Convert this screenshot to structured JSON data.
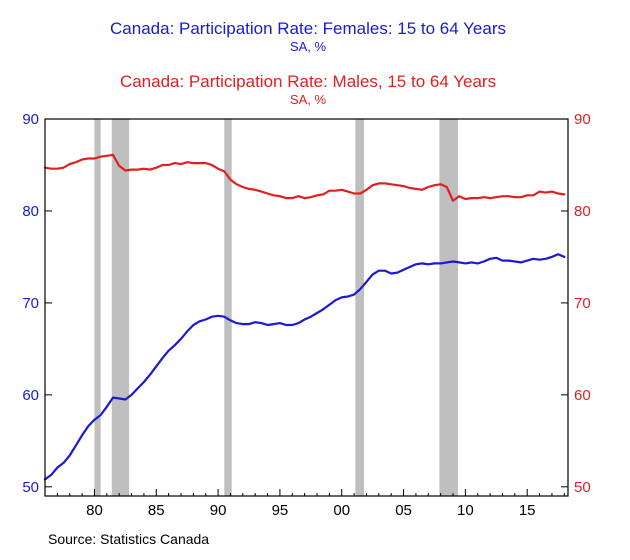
{
  "chart_data": {
    "type": "line",
    "titles": [
      {
        "title": "Canada: Participation Rate: Females: 15 to 64 Years",
        "subtitle": "SA, %",
        "color": "#1a1ad2"
      },
      {
        "title": "Canada: Participation Rate: Males, 15 to 64 Years",
        "subtitle": "SA, %",
        "color": "#e02020"
      }
    ],
    "x_ticks": [
      "80",
      "85",
      "90",
      "95",
      "00",
      "05",
      "10",
      "15"
    ],
    "x_tick_years": [
      1980,
      1985,
      1990,
      1995,
      2000,
      2005,
      2010,
      2015
    ],
    "xlim": [
      1976.0,
      2018.3
    ],
    "left_axis": {
      "ticks": [
        50,
        60,
        70,
        80,
        90
      ],
      "ylim": [
        49,
        90
      ],
      "color": "#1a1ad2"
    },
    "right_axis": {
      "ticks": [
        50,
        60,
        70,
        80,
        90
      ],
      "ylim": [
        49,
        90
      ],
      "color": "#e02020"
    },
    "recession_bands": [
      [
        1980.0,
        1980.5
      ],
      [
        1981.4,
        1982.8
      ],
      [
        1990.5,
        1991.1
      ],
      [
        2001.1,
        2001.8
      ],
      [
        2007.9,
        2009.4
      ]
    ],
    "band_color": "#bfbfbf",
    "grid": false,
    "series": [
      {
        "color": "#1a1ad2",
        "axis": "left",
        "x": [
          1976.0,
          1976.5,
          1977.0,
          1977.5,
          1978.0,
          1978.5,
          1979.0,
          1979.5,
          1980.0,
          1980.5,
          1981.0,
          1981.5,
          1982.0,
          1982.5,
          1983.0,
          1983.5,
          1984.0,
          1984.5,
          1985.0,
          1985.5,
          1986.0,
          1986.5,
          1987.0,
          1987.5,
          1988.0,
          1988.5,
          1989.0,
          1989.5,
          1990.0,
          1990.5,
          1991.0,
          1991.5,
          1992.0,
          1992.5,
          1993.0,
          1993.5,
          1994.0,
          1994.5,
          1995.0,
          1995.5,
          1996.0,
          1996.5,
          1997.0,
          1997.5,
          1998.0,
          1998.5,
          1999.0,
          1999.5,
          2000.0,
          2000.5,
          2001.0,
          2001.5,
          2002.0,
          2002.5,
          2003.0,
          2003.5,
          2004.0,
          2004.5,
          2005.0,
          2005.5,
          2006.0,
          2006.5,
          2007.0,
          2007.5,
          2008.0,
          2008.5,
          2009.0,
          2009.5,
          2010.0,
          2010.5,
          2011.0,
          2011.5,
          2012.0,
          2012.5,
          2013.0,
          2013.5,
          2014.0,
          2014.5,
          2015.0,
          2015.5,
          2016.0,
          2016.5,
          2017.0,
          2017.5,
          2018.0
        ],
        "values": [
          50.8,
          51.3,
          52.1,
          52.6,
          53.4,
          54.5,
          55.6,
          56.6,
          57.3,
          57.8,
          58.7,
          59.7,
          59.6,
          59.5,
          60.0,
          60.7,
          61.4,
          62.2,
          63.1,
          64.0,
          64.8,
          65.4,
          66.1,
          66.9,
          67.6,
          68.0,
          68.2,
          68.5,
          68.6,
          68.5,
          68.1,
          67.8,
          67.7,
          67.7,
          67.9,
          67.8,
          67.6,
          67.7,
          67.8,
          67.6,
          67.6,
          67.8,
          68.2,
          68.5,
          68.9,
          69.3,
          69.8,
          70.3,
          70.6,
          70.7,
          70.9,
          71.5,
          72.3,
          73.1,
          73.5,
          73.5,
          73.2,
          73.3,
          73.6,
          73.9,
          74.2,
          74.3,
          74.2,
          74.3,
          74.3,
          74.4,
          74.5,
          74.4,
          74.3,
          74.4,
          74.3,
          74.5,
          74.8,
          74.9,
          74.6,
          74.6,
          74.5,
          74.4,
          74.6,
          74.8,
          74.7,
          74.8,
          75.0,
          75.3,
          75.0
        ]
      },
      {
        "color": "#e02020",
        "axis": "right",
        "x": [
          1976.0,
          1976.5,
          1977.0,
          1977.5,
          1978.0,
          1978.5,
          1979.0,
          1979.5,
          1980.0,
          1980.5,
          1981.0,
          1981.5,
          1982.0,
          1982.5,
          1983.0,
          1983.5,
          1984.0,
          1984.5,
          1985.0,
          1985.5,
          1986.0,
          1986.5,
          1987.0,
          1987.5,
          1988.0,
          1988.5,
          1989.0,
          1989.5,
          1990.0,
          1990.5,
          1991.0,
          1991.5,
          1992.0,
          1992.5,
          1993.0,
          1993.5,
          1994.0,
          1994.5,
          1995.0,
          1995.5,
          1996.0,
          1996.5,
          1997.0,
          1997.5,
          1998.0,
          1998.5,
          1999.0,
          1999.5,
          2000.0,
          2000.5,
          2001.0,
          2001.5,
          2002.0,
          2002.5,
          2003.0,
          2003.5,
          2004.0,
          2004.5,
          2005.0,
          2005.5,
          2006.0,
          2006.5,
          2007.0,
          2007.5,
          2008.0,
          2008.5,
          2009.0,
          2009.5,
          2010.0,
          2010.5,
          2011.0,
          2011.5,
          2012.0,
          2012.5,
          2013.0,
          2013.5,
          2014.0,
          2014.5,
          2015.0,
          2015.5,
          2016.0,
          2016.5,
          2017.0,
          2017.5,
          2018.0
        ],
        "values": [
          84.7,
          84.6,
          84.6,
          84.7,
          85.1,
          85.3,
          85.6,
          85.7,
          85.7,
          85.9,
          86.0,
          86.1,
          84.9,
          84.4,
          84.5,
          84.5,
          84.6,
          84.5,
          84.7,
          85.0,
          85.0,
          85.2,
          85.1,
          85.3,
          85.2,
          85.2,
          85.2,
          85.0,
          84.6,
          84.3,
          83.4,
          82.9,
          82.6,
          82.4,
          82.3,
          82.1,
          81.9,
          81.7,
          81.6,
          81.4,
          81.4,
          81.6,
          81.4,
          81.5,
          81.7,
          81.8,
          82.2,
          82.2,
          82.3,
          82.1,
          81.9,
          81.9,
          82.3,
          82.8,
          83.0,
          83.0,
          82.9,
          82.8,
          82.7,
          82.5,
          82.4,
          82.3,
          82.6,
          82.8,
          82.9,
          82.6,
          81.1,
          81.6,
          81.3,
          81.4,
          81.4,
          81.5,
          81.4,
          81.5,
          81.6,
          81.6,
          81.5,
          81.5,
          81.7,
          81.7,
          82.1,
          82.0,
          82.1,
          81.9,
          81.8
        ]
      }
    ],
    "source": "Source:  Statistics Canada"
  }
}
